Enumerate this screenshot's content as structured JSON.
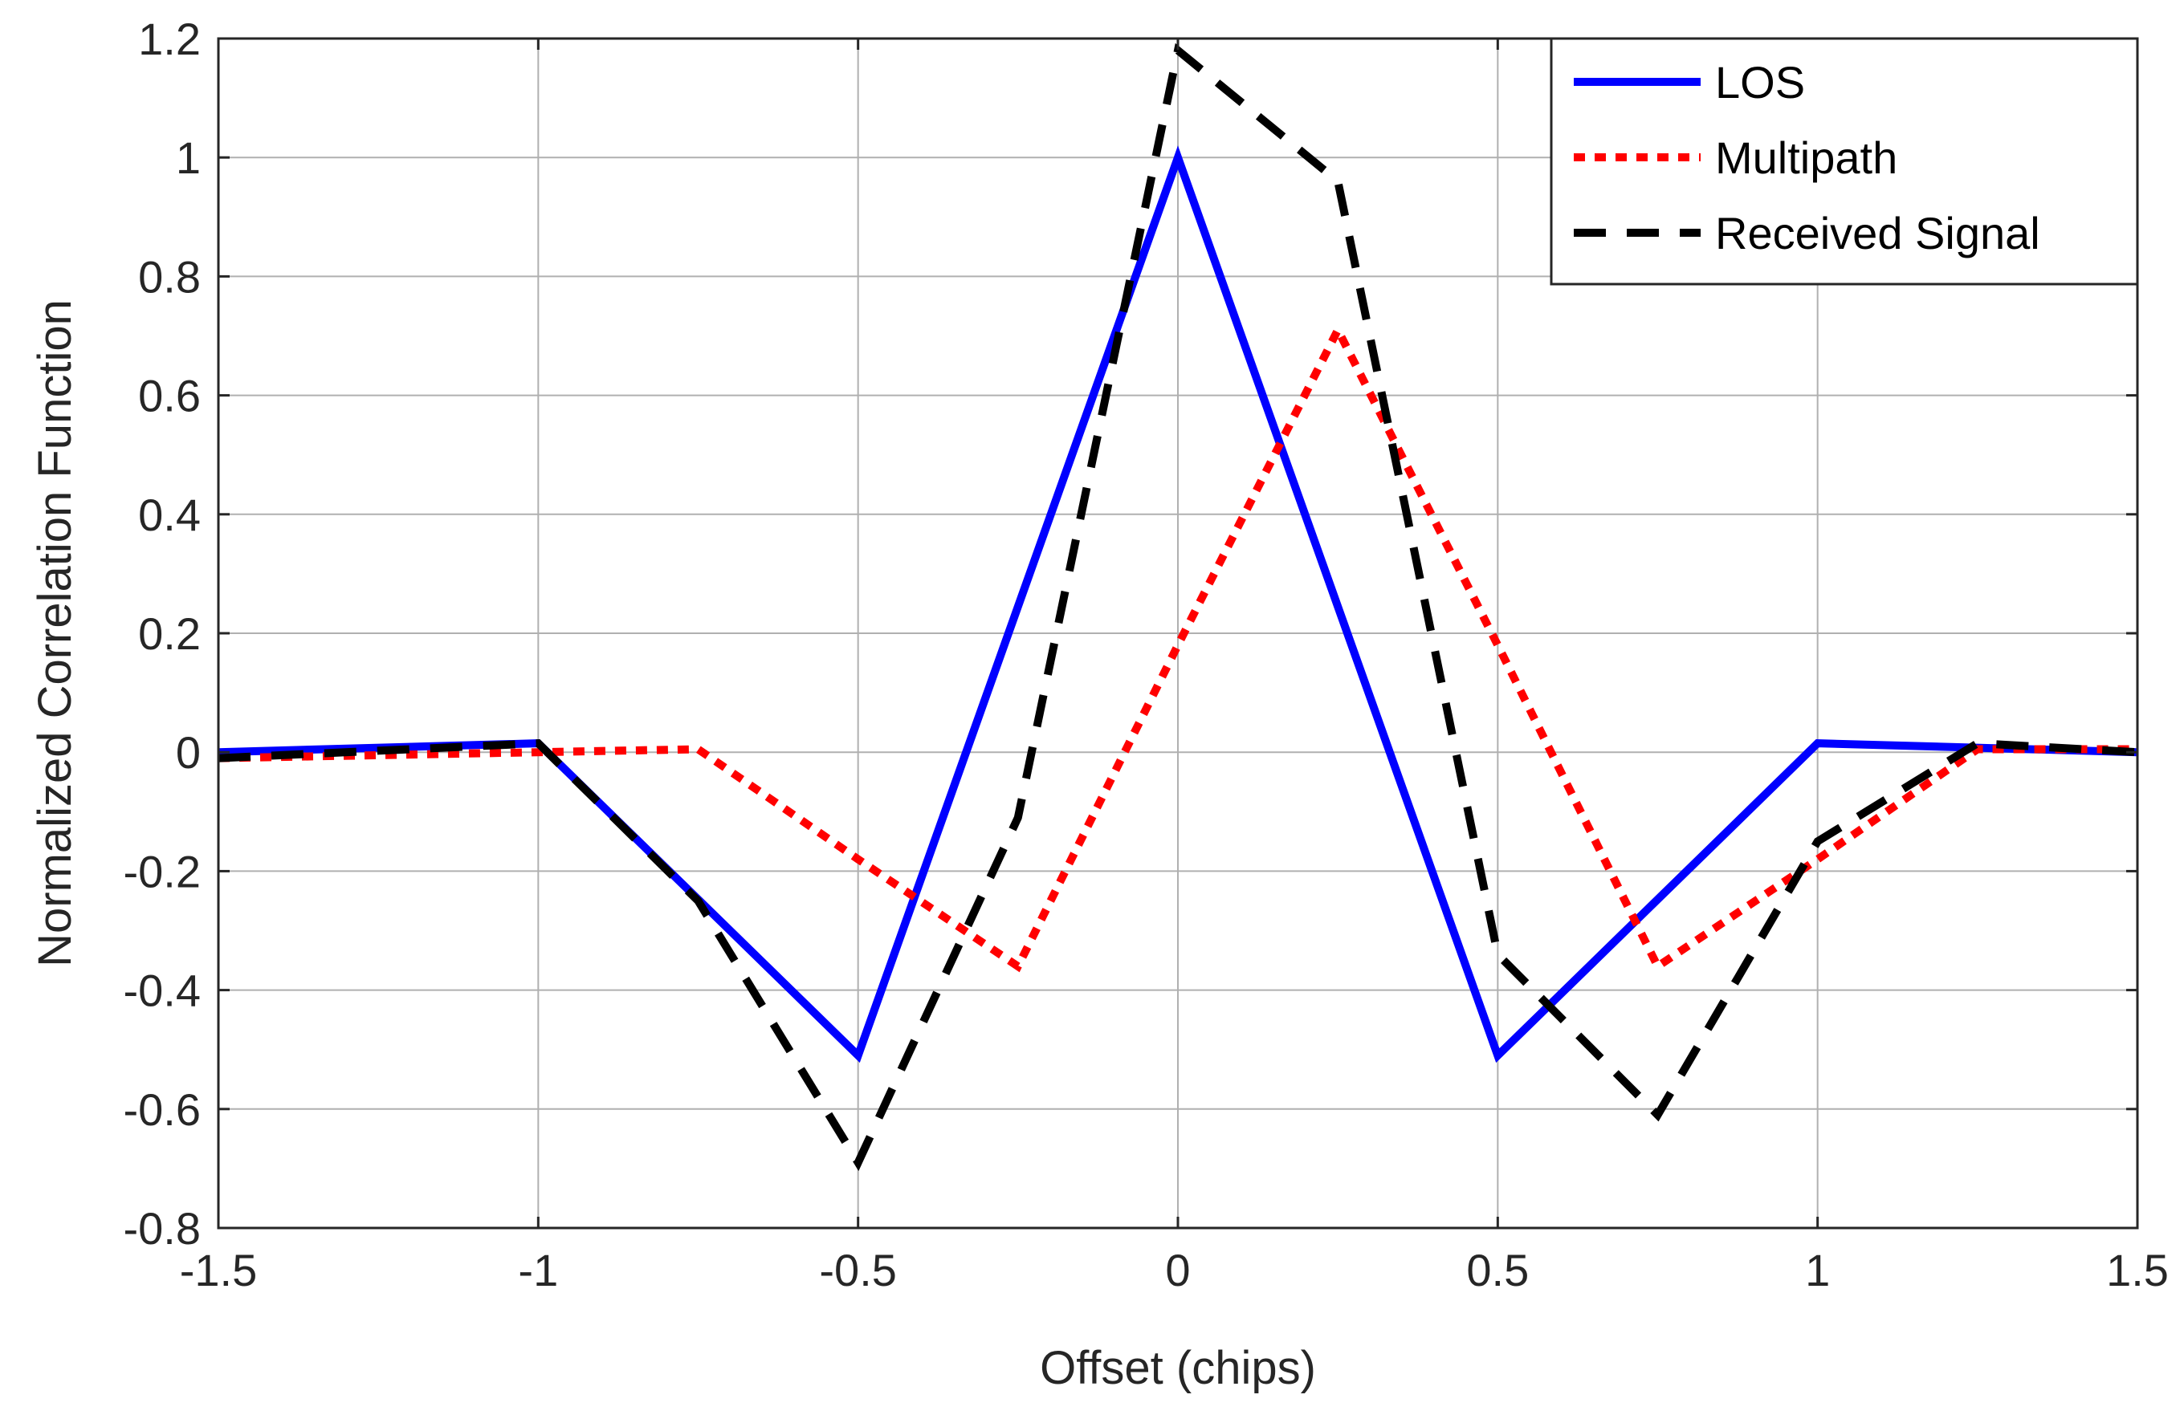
{
  "chart_data": {
    "type": "line",
    "title": "",
    "xlabel": "Offset (chips)",
    "ylabel": "Normalized Correlation Function",
    "xlim": [
      -1.5,
      1.5
    ],
    "ylim": [
      -0.8,
      1.2
    ],
    "xticks": [
      -1.5,
      -1,
      -0.5,
      0,
      0.5,
      1,
      1.5
    ],
    "xtick_labels": [
      "-1.5",
      "-1",
      "-0.5",
      "0",
      "0.5",
      "1",
      "1.5"
    ],
    "yticks": [
      -0.8,
      -0.6,
      -0.4,
      -0.2,
      0,
      0.2,
      0.4,
      0.6,
      0.8,
      1,
      1.2
    ],
    "ytick_labels": [
      "-0.8",
      "-0.6",
      "-0.4",
      "-0.2",
      "0",
      "0.2",
      "0.4",
      "0.6",
      "0.8",
      "1",
      "1.2"
    ],
    "grid": true,
    "legend_position": "top-right",
    "series": [
      {
        "name": "LOS",
        "color": "#0000ff",
        "style": "solid",
        "x": [
          -1.5,
          -1,
          -0.5,
          0,
          0.5,
          1,
          1.5
        ],
        "y": [
          0,
          0.015,
          -0.51,
          1.0,
          -0.51,
          0.015,
          0
        ]
      },
      {
        "name": "Multipath",
        "color": "#ff0000",
        "style": "dotted",
        "x": [
          -1.5,
          -1,
          -0.75,
          -0.5,
          -0.25,
          0,
          0.25,
          0.5,
          0.75,
          1,
          1.25,
          1.5
        ],
        "y": [
          -0.01,
          0,
          0.005,
          -0.18,
          -0.36,
          0.18,
          0.71,
          0.18,
          -0.36,
          -0.18,
          0.005,
          0.005
        ]
      },
      {
        "name": "Received Signal",
        "color": "#000000",
        "style": "dashed",
        "x": [
          -1.5,
          -1,
          -0.75,
          -0.5,
          -0.25,
          0,
          0.25,
          0.5,
          0.75,
          1,
          1.25,
          1.5
        ],
        "y": [
          -0.01,
          0.015,
          -0.25,
          -0.69,
          -0.11,
          1.18,
          0.96,
          -0.34,
          -0.61,
          -0.15,
          0.015,
          0
        ]
      }
    ]
  }
}
